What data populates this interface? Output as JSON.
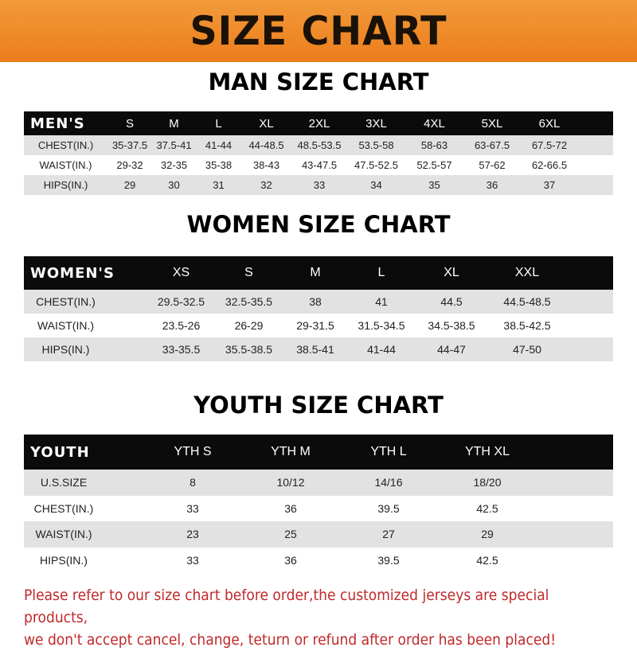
{
  "title": "SIZE CHART",
  "men": {
    "title": "MAN SIZE CHART",
    "header": "MEN'S",
    "sizes": [
      "S",
      "M",
      "L",
      "XL",
      "2XL",
      "3XL",
      "4XL",
      "5XL",
      "6XL"
    ],
    "rows": [
      {
        "label": "CHEST(IN.)",
        "values": [
          "35-37.5",
          "37.5-41",
          "41-44",
          "44-48.5",
          "48.5-53.5",
          "53.5-58",
          "58-63",
          "63-67.5",
          "67.5-72"
        ]
      },
      {
        "label": "WAIST(IN.)",
        "values": [
          "29-32",
          "32-35",
          "35-38",
          "38-43",
          "43-47.5",
          "47.5-52.5",
          "52.5-57",
          "57-62",
          "62-66.5"
        ]
      },
      {
        "label": "HIPS(IN.)",
        "values": [
          "29",
          "30",
          "31",
          "32",
          "33",
          "34",
          "35",
          "36",
          "37"
        ]
      }
    ]
  },
  "women": {
    "title": "WOMEN SIZE CHART",
    "header": "WOMEN'S",
    "sizes": [
      "XS",
      "S",
      "M",
      "L",
      "XL",
      "XXL"
    ],
    "rows": [
      {
        "label": "CHEST(IN.)",
        "values": [
          "29.5-32.5",
          "32.5-35.5",
          "38",
          "41",
          "44.5",
          "44.5-48.5"
        ]
      },
      {
        "label": "WAIST(IN.)",
        "values": [
          "23.5-26",
          "26-29",
          "29-31.5",
          "31.5-34.5",
          "34.5-38.5",
          "38.5-42.5"
        ]
      },
      {
        "label": "HIPS(IN.)",
        "values": [
          "33-35.5",
          "35.5-38.5",
          "38.5-41",
          "41-44",
          "44-47",
          "47-50"
        ]
      }
    ]
  },
  "youth": {
    "title": "YOUTH SIZE CHART",
    "header": "YOUTH",
    "sizes": [
      "YTH S",
      "YTH M",
      "YTH L",
      "YTH XL"
    ],
    "rows": [
      {
        "label": "U.S.SIZE",
        "values": [
          "8",
          "10/12",
          "14/16",
          "18/20"
        ]
      },
      {
        "label": "CHEST(IN.)",
        "values": [
          "33",
          "36",
          "39.5",
          "42.5"
        ]
      },
      {
        "label": "WAIST(IN.)",
        "values": [
          "23",
          "25",
          "27",
          "29"
        ]
      },
      {
        "label": "HIPS(IN.)",
        "values": [
          "33",
          "36",
          "39.5",
          "42.5"
        ]
      }
    ]
  },
  "note": [
    "Please refer to our size chart before order,the customized jerseys are special products,",
    "we don't accept cancel, change, teturn or refund after order has been placed!"
  ],
  "colors": {
    "banner": "#ec7d1c",
    "header_row": "#0b0b0b",
    "note": "#c0282a",
    "stripe": "#e2e2e2"
  }
}
